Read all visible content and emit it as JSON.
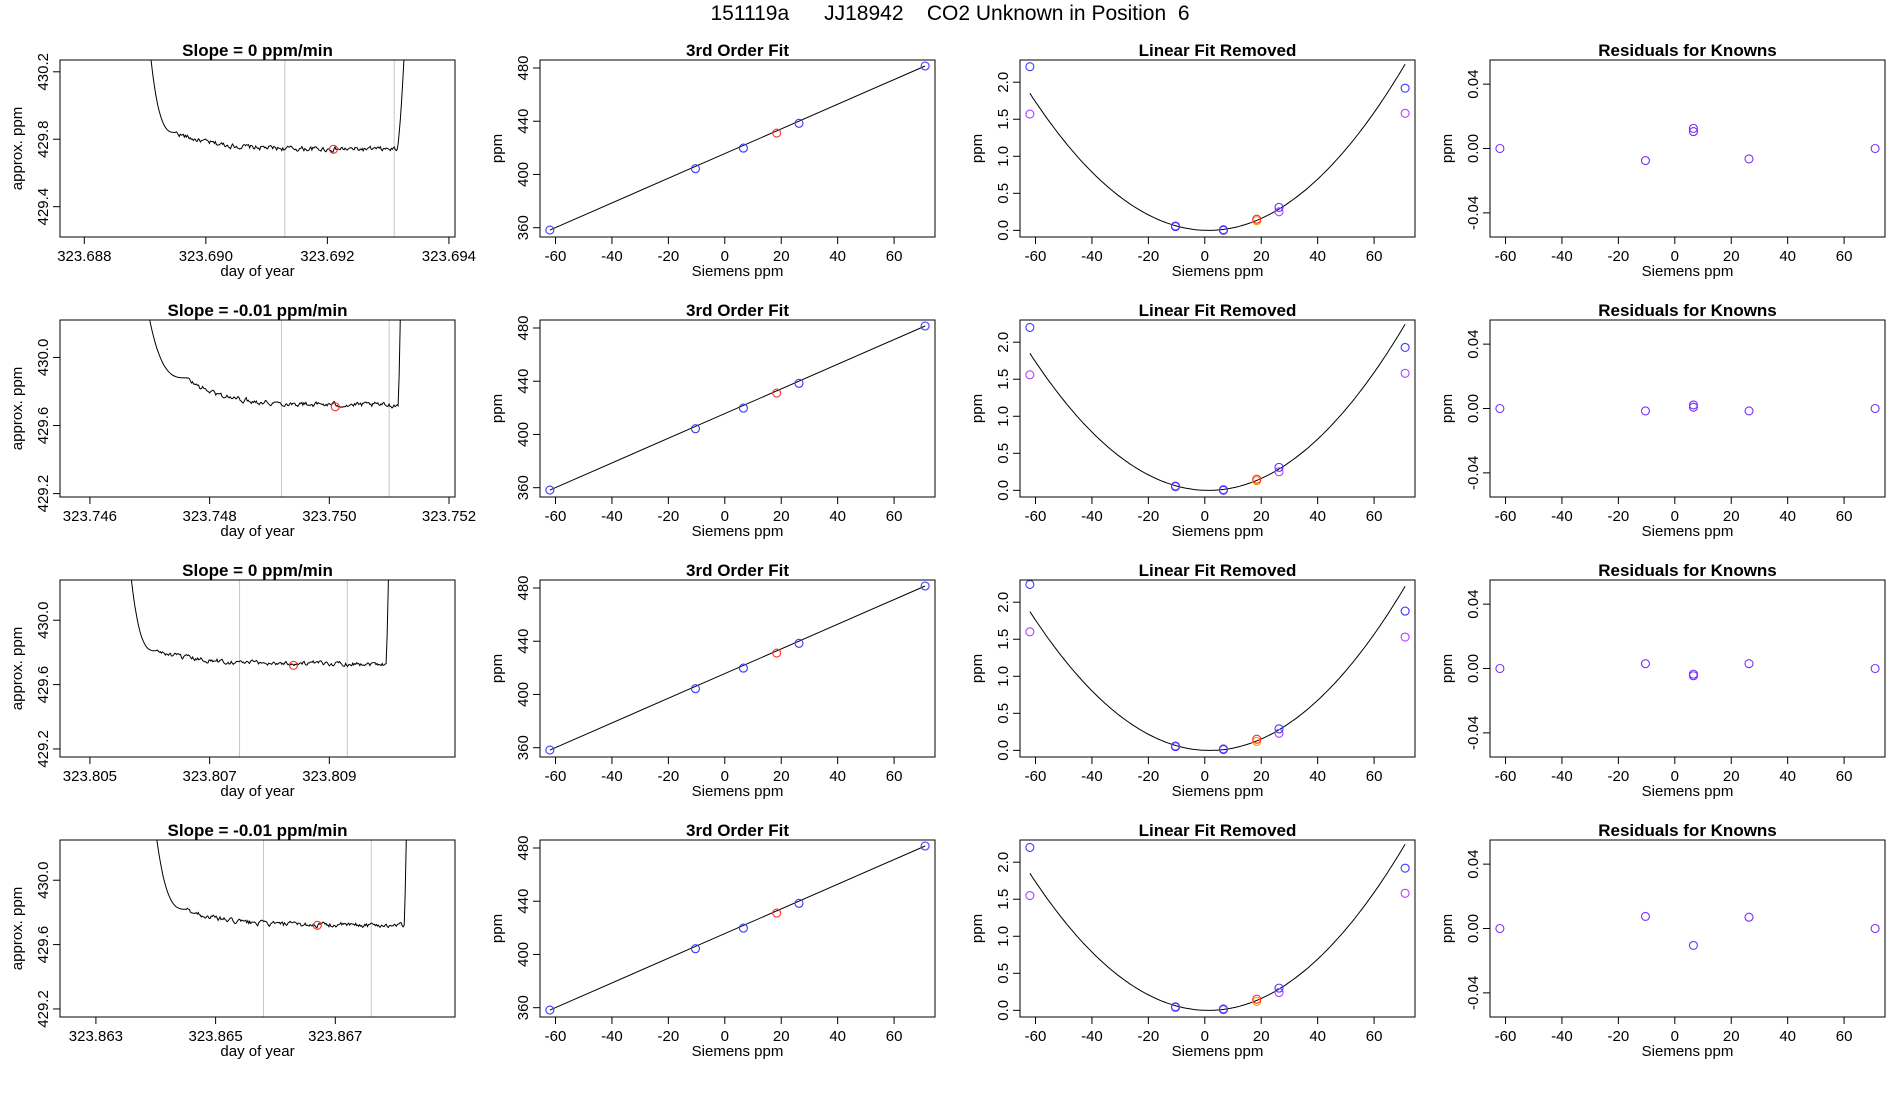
{
  "title": "151119a      JJ18942    CO2 Unknown in Position  6",
  "colors": {
    "blue": "#3b3bff",
    "violet": "#b040ff",
    "red": "#ff2a2a",
    "orange": "#ff9900",
    "purple": "#7a2cff",
    "line": "#000000",
    "guide": "#c8c8c8"
  },
  "chart_data": [
    {
      "type": "line",
      "row": 1,
      "title": "Slope =  0  ppm/min",
      "xlabel": "day of year",
      "ylabel": "approx. ppm",
      "xlim": [
        323.6876,
        323.6941
      ],
      "ylim": [
        429.22,
        430.27
      ],
      "xticks": [
        "323.688",
        "323.690",
        "323.692",
        "323.694"
      ],
      "xtickvals": [
        323.688,
        323.69,
        323.692,
        323.694
      ],
      "yticks": [
        "429.4",
        "429.8",
        "430.2"
      ],
      "ytickvals": [
        429.4,
        429.8,
        430.2
      ],
      "trace": {
        "t_start": 323.689,
        "t_end": 323.6933,
        "t_flat": 323.6895,
        "t_rise": 323.69315,
        "level": 429.74,
        "decay_amp": 0.1,
        "top": 430.27
      },
      "guides": [
        323.6913,
        323.6931
      ],
      "mean_point": {
        "x": 323.6921,
        "y": 429.74
      }
    },
    {
      "type": "line",
      "row": 2,
      "title": "Slope =  -0.01  ppm/min",
      "xlabel": "day of year",
      "ylabel": "approx. ppm",
      "xlim": [
        323.7455,
        323.7521
      ],
      "ylim": [
        429.18,
        430.22
      ],
      "xticks": [
        "323.746",
        "323.748",
        "323.750",
        "323.752"
      ],
      "xtickvals": [
        323.746,
        323.748,
        323.75,
        323.752
      ],
      "yticks": [
        "429.2",
        "429.6",
        "430.0"
      ],
      "ytickvals": [
        429.2,
        429.6,
        430.0
      ],
      "trace": {
        "t_start": 323.7468,
        "t_end": 323.7512,
        "t_flat": 323.7476,
        "t_rise": 323.75115,
        "level": 429.72,
        "decay_amp": 0.16,
        "top": 430.22
      },
      "guides": [
        323.7492,
        323.751
      ],
      "mean_point": {
        "x": 323.7501,
        "y": 429.71
      }
    },
    {
      "type": "line",
      "row": 3,
      "title": "Slope =  0  ppm/min",
      "xlabel": "day of year",
      "ylabel": "approx. ppm",
      "xlim": [
        323.8045,
        323.8111
      ],
      "ylim": [
        429.15,
        430.25
      ],
      "xticks": [
        "323.805",
        "323.807",
        "323.809"
      ],
      "xtickvals": [
        323.805,
        323.807,
        323.809
      ],
      "yticks": [
        "429.2",
        "429.6",
        "430.0"
      ],
      "ytickvals": [
        429.2,
        429.6,
        430.0
      ],
      "trace": {
        "t_start": 323.8056,
        "t_end": 323.81,
        "t_flat": 323.8061,
        "t_rise": 323.80995,
        "level": 429.73,
        "decay_amp": 0.08,
        "top": 430.25
      },
      "guides": [
        323.8075,
        323.8093
      ],
      "mean_point": {
        "x": 323.8084,
        "y": 429.72
      }
    },
    {
      "type": "line",
      "row": 4,
      "title": "Slope =  -0.01  ppm/min",
      "xlabel": "day of year",
      "ylabel": "approx. ppm",
      "xlim": [
        323.8624,
        323.869
      ],
      "ylim": [
        429.15,
        430.25
      ],
      "xticks": [
        "323.863",
        "323.865",
        "323.867"
      ],
      "xtickvals": [
        323.863,
        323.865,
        323.867
      ],
      "yticks": [
        "429.2",
        "429.6",
        "430.0"
      ],
      "ytickvals": [
        429.2,
        429.6,
        430.0
      ],
      "trace": {
        "t_start": 323.8639,
        "t_end": 323.8682,
        "t_flat": 323.8645,
        "t_rise": 323.86815,
        "level": 429.72,
        "decay_amp": 0.1,
        "top": 430.25
      },
      "guides": [
        323.8658,
        323.8676
      ],
      "mean_point": {
        "x": 323.8667,
        "y": 429.72
      }
    },
    {
      "type": "scatter",
      "row": 1,
      "title": "3rd Order Fit",
      "xlabel": "Siemens ppm",
      "ylabel": "ppm",
      "xlim": [
        -65.5,
        74.5
      ],
      "ylim": [
        353,
        486
      ],
      "xticks": [
        "-60",
        "-40",
        "-20",
        "0",
        "20",
        "40",
        "60"
      ],
      "xtickvals": [
        -60,
        -40,
        -20,
        0,
        20,
        40,
        60
      ],
      "yticks": [
        "360",
        "400",
        "440",
        "480"
      ],
      "ytickvals": [
        360,
        400,
        440,
        480
      ],
      "line": [
        [
          -62,
          358.2
        ],
        [
          71,
          481.5
        ]
      ],
      "known": [
        [
          -62,
          358.2
        ],
        [
          -10.4,
          404.3
        ],
        [
          6.6,
          419.8
        ],
        [
          26.3,
          438.4
        ],
        [
          71,
          481.5
        ]
      ],
      "unknown": [
        [
          18.4,
          431.1
        ]
      ]
    },
    {
      "type": "scatter",
      "row": 2,
      "title": "3rd Order Fit",
      "xlabel": "Siemens ppm",
      "ylabel": "ppm",
      "xlim": [
        -65.5,
        74.5
      ],
      "ylim": [
        353,
        486
      ],
      "xticks": [
        "-60",
        "-40",
        "-20",
        "0",
        "20",
        "40",
        "60"
      ],
      "xtickvals": [
        -60,
        -40,
        -20,
        0,
        20,
        40,
        60
      ],
      "yticks": [
        "360",
        "400",
        "440",
        "480"
      ],
      "ytickvals": [
        360,
        400,
        440,
        480
      ],
      "line": [
        [
          -62,
          358.2
        ],
        [
          71,
          481.5
        ]
      ],
      "known": [
        [
          -62,
          358.2
        ],
        [
          -10.4,
          404.3
        ],
        [
          6.6,
          419.8
        ],
        [
          26.3,
          438.4
        ],
        [
          71,
          481.5
        ]
      ],
      "unknown": [
        [
          18.4,
          431.1
        ]
      ]
    },
    {
      "type": "scatter",
      "row": 3,
      "title": "3rd Order Fit",
      "xlabel": "Siemens ppm",
      "ylabel": "ppm",
      "xlim": [
        -65.5,
        74.5
      ],
      "ylim": [
        353,
        486
      ],
      "xticks": [
        "-60",
        "-40",
        "-20",
        "0",
        "20",
        "40",
        "60"
      ],
      "xtickvals": [
        -60,
        -40,
        -20,
        0,
        20,
        40,
        60
      ],
      "yticks": [
        "360",
        "400",
        "440",
        "480"
      ],
      "ytickvals": [
        360,
        400,
        440,
        480
      ],
      "line": [
        [
          -62,
          358.2
        ],
        [
          71,
          481.5
        ]
      ],
      "known": [
        [
          -62,
          358.2
        ],
        [
          -10.4,
          404.3
        ],
        [
          6.6,
          419.8
        ],
        [
          26.3,
          438.4
        ],
        [
          71,
          481.5
        ]
      ],
      "unknown": [
        [
          18.4,
          431.1
        ]
      ]
    },
    {
      "type": "scatter",
      "row": 4,
      "title": "3rd Order Fit",
      "xlabel": "Siemens ppm",
      "ylabel": "ppm",
      "xlim": [
        -65.5,
        74.5
      ],
      "ylim": [
        353,
        486
      ],
      "xticks": [
        "-60",
        "-40",
        "-20",
        "0",
        "20",
        "40",
        "60"
      ],
      "xtickvals": [
        -60,
        -40,
        -20,
        0,
        20,
        40,
        60
      ],
      "yticks": [
        "360",
        "400",
        "440",
        "480"
      ],
      "ytickvals": [
        360,
        400,
        440,
        480
      ],
      "line": [
        [
          -62,
          358.2
        ],
        [
          71,
          481.5
        ]
      ],
      "known": [
        [
          -62,
          358.2
        ],
        [
          -10.4,
          404.3
        ],
        [
          6.6,
          419.8
        ],
        [
          26.3,
          438.4
        ],
        [
          71,
          481.5
        ]
      ],
      "unknown": [
        [
          18.4,
          431.1
        ]
      ]
    },
    {
      "type": "scatter",
      "row": 1,
      "title": "Linear Fit Removed",
      "xlabel": "Siemens ppm",
      "ylabel": "ppm",
      "xlim": [
        -65.5,
        74.5
      ],
      "ylim": [
        -0.09,
        2.3
      ],
      "xticks": [
        "-60",
        "-40",
        "-20",
        "0",
        "20",
        "40",
        "60"
      ],
      "xtickvals": [
        -60,
        -40,
        -20,
        0,
        20,
        40,
        60
      ],
      "yticks": [
        "0.0",
        "0.5",
        "1.0",
        "1.5",
        "2.0"
      ],
      "ytickvals": [
        0,
        0.5,
        1.0,
        1.5,
        2.0
      ],
      "curve": {
        "coef": [
          0.0,
          -0.0012,
          0.000462,
          0.0
        ],
        "xrange": [
          -62,
          71
        ]
      },
      "known_blue": [
        [
          -62,
          2.21
        ],
        [
          -10.4,
          0.05
        ],
        [
          6.6,
          0.0
        ],
        [
          26.3,
          0.31
        ],
        [
          71,
          1.92
        ]
      ],
      "known_violet": [
        [
          -62,
          1.57
        ],
        [
          -10.4,
          0.06
        ],
        [
          6.6,
          0.01
        ],
        [
          26.3,
          0.25
        ],
        [
          71,
          1.58
        ]
      ],
      "unknown_orange": [
        [
          18.4,
          0.13
        ]
      ],
      "unknown_red": [
        [
          18.4,
          0.15
        ]
      ]
    },
    {
      "type": "scatter",
      "row": 2,
      "title": "Linear Fit Removed",
      "xlabel": "Siemens ppm",
      "ylabel": "ppm",
      "xlim": [
        -65.5,
        74.5
      ],
      "ylim": [
        -0.09,
        2.3
      ],
      "xticks": [
        "-60",
        "-40",
        "-20",
        "0",
        "20",
        "40",
        "60"
      ],
      "xtickvals": [
        -60,
        -40,
        -20,
        0,
        20,
        40,
        60
      ],
      "yticks": [
        "0.0",
        "0.5",
        "1.0",
        "1.5",
        "2.0"
      ],
      "ytickvals": [
        0,
        0.5,
        1.0,
        1.5,
        2.0
      ],
      "curve": {
        "coef": [
          0.0,
          -0.0012,
          0.000462,
          0.0
        ],
        "xrange": [
          -62,
          71
        ]
      },
      "known_blue": [
        [
          -62,
          2.2
        ],
        [
          -10.4,
          0.05
        ],
        [
          6.6,
          0.0
        ],
        [
          26.3,
          0.31
        ],
        [
          71,
          1.93
        ]
      ],
      "known_violet": [
        [
          -62,
          1.56
        ],
        [
          -10.4,
          0.06
        ],
        [
          6.6,
          0.01
        ],
        [
          26.3,
          0.25
        ],
        [
          71,
          1.58
        ]
      ],
      "unknown_orange": [
        [
          18.4,
          0.13
        ]
      ],
      "unknown_red": [
        [
          18.4,
          0.15
        ]
      ]
    },
    {
      "type": "scatter",
      "row": 3,
      "title": "Linear Fit Removed",
      "xlabel": "Siemens ppm",
      "ylabel": "ppm",
      "xlim": [
        -65.5,
        74.5
      ],
      "ylim": [
        -0.09,
        2.3
      ],
      "xticks": [
        "-60",
        "-40",
        "-20",
        "0",
        "20",
        "40",
        "60"
      ],
      "xtickvals": [
        -60,
        -40,
        -20,
        0,
        20,
        40,
        60
      ],
      "yticks": [
        "0.0",
        "0.5",
        "1.0",
        "1.5",
        "2.0"
      ],
      "ytickvals": [
        0,
        0.5,
        1.0,
        1.5,
        2.0
      ],
      "curve": {
        "coef": [
          0.0,
          -0.0016,
          0.000462,
          0.0
        ],
        "xrange": [
          -62,
          71
        ]
      },
      "known_blue": [
        [
          -62,
          2.24
        ],
        [
          -10.4,
          0.05
        ],
        [
          6.6,
          0.01
        ],
        [
          26.3,
          0.29
        ],
        [
          71,
          1.88
        ]
      ],
      "known_violet": [
        [
          -62,
          1.6
        ],
        [
          -10.4,
          0.06
        ],
        [
          6.6,
          0.02
        ],
        [
          26.3,
          0.23
        ],
        [
          71,
          1.53
        ]
      ],
      "unknown_orange": [
        [
          18.4,
          0.12
        ]
      ],
      "unknown_red": [
        [
          18.4,
          0.15
        ]
      ]
    },
    {
      "type": "scatter",
      "row": 4,
      "title": "Linear Fit Removed",
      "xlabel": "Siemens ppm",
      "ylabel": "ppm",
      "xlim": [
        -65.5,
        74.5
      ],
      "ylim": [
        -0.09,
        2.3
      ],
      "xticks": [
        "-60",
        "-40",
        "-20",
        "0",
        "20",
        "40",
        "60"
      ],
      "xtickvals": [
        -60,
        -40,
        -20,
        0,
        20,
        40,
        60
      ],
      "yticks": [
        "0.0",
        "0.5",
        "1.0",
        "1.5",
        "2.0"
      ],
      "ytickvals": [
        0,
        0.5,
        1.0,
        1.5,
        2.0
      ],
      "curve": {
        "coef": [
          0.0,
          -0.0012,
          0.000462,
          0.0
        ],
        "xrange": [
          -62,
          71
        ]
      },
      "known_blue": [
        [
          -62,
          2.2
        ],
        [
          -10.4,
          0.04
        ],
        [
          6.6,
          0.01
        ],
        [
          26.3,
          0.3
        ],
        [
          71,
          1.92
        ]
      ],
      "known_violet": [
        [
          -62,
          1.55
        ],
        [
          -10.4,
          0.05
        ],
        [
          6.6,
          0.02
        ],
        [
          26.3,
          0.24
        ],
        [
          71,
          1.58
        ]
      ],
      "unknown_orange": [
        [
          18.4,
          0.12
        ]
      ],
      "unknown_red": [
        [
          18.4,
          0.15
        ]
      ]
    },
    {
      "type": "scatter",
      "row": 1,
      "title": "Residuals for Knowns",
      "xlabel": "Siemens ppm",
      "ylabel": "ppm",
      "xlim": [
        -65.5,
        74.5
      ],
      "ylim": [
        -0.055,
        0.055
      ],
      "xticks": [
        "-60",
        "-40",
        "-20",
        "0",
        "20",
        "40",
        "60"
      ],
      "xtickvals": [
        -60,
        -40,
        -20,
        0,
        20,
        40,
        60
      ],
      "yticks": [
        "-0.04",
        "0.00",
        "0.04"
      ],
      "ytickvals": [
        -0.04,
        0.0,
        0.04
      ],
      "points": [
        [
          -62,
          0.0
        ],
        [
          -10.4,
          -0.0075
        ],
        [
          6.6,
          0.0125
        ],
        [
          6.6,
          0.0105
        ],
        [
          26.3,
          -0.0065
        ],
        [
          71,
          0.0
        ]
      ]
    },
    {
      "type": "scatter",
      "row": 2,
      "title": "Residuals for Knowns",
      "xlabel": "Siemens ppm",
      "ylabel": "ppm",
      "xlim": [
        -65.5,
        74.5
      ],
      "ylim": [
        -0.055,
        0.055
      ],
      "xticks": [
        "-60",
        "-40",
        "-20",
        "0",
        "20",
        "40",
        "60"
      ],
      "xtickvals": [
        -60,
        -40,
        -20,
        0,
        20,
        40,
        60
      ],
      "yticks": [
        "-0.04",
        "0.00",
        "0.04"
      ],
      "ytickvals": [
        -0.04,
        0.0,
        0.04
      ],
      "points": [
        [
          -62,
          0.0
        ],
        [
          -10.4,
          -0.0015
        ],
        [
          6.6,
          0.0022
        ],
        [
          6.6,
          0.0008
        ],
        [
          26.3,
          -0.0015
        ],
        [
          71,
          0.0
        ]
      ]
    },
    {
      "type": "scatter",
      "row": 3,
      "title": "Residuals for Knowns",
      "xlabel": "Siemens ppm",
      "ylabel": "ppm",
      "xlim": [
        -65.5,
        74.5
      ],
      "ylim": [
        -0.055,
        0.055
      ],
      "xticks": [
        "-60",
        "-40",
        "-20",
        "0",
        "20",
        "40",
        "60"
      ],
      "xtickvals": [
        -60,
        -40,
        -20,
        0,
        20,
        40,
        60
      ],
      "yticks": [
        "-0.04",
        "0.00",
        "0.04"
      ],
      "ytickvals": [
        -0.04,
        0.0,
        0.04
      ],
      "points": [
        [
          -62,
          0.0
        ],
        [
          -10.4,
          0.003
        ],
        [
          6.6,
          -0.0045
        ],
        [
          6.6,
          -0.0035
        ],
        [
          26.3,
          0.003
        ],
        [
          71,
          0.0
        ]
      ]
    },
    {
      "type": "scatter",
      "row": 4,
      "title": "Residuals for Knowns",
      "xlabel": "Siemens ppm",
      "ylabel": "ppm",
      "xlim": [
        -65.5,
        74.5
      ],
      "ylim": [
        -0.055,
        0.055
      ],
      "xticks": [
        "-60",
        "-40",
        "-20",
        "0",
        "20",
        "40",
        "60"
      ],
      "xtickvals": [
        -60,
        -40,
        -20,
        0,
        20,
        40,
        60
      ],
      "yticks": [
        "-0.04",
        "0.00",
        "0.04"
      ],
      "ytickvals": [
        -0.04,
        0.0,
        0.04
      ],
      "points": [
        [
          -62,
          0.0
        ],
        [
          -10.4,
          0.0075
        ],
        [
          6.6,
          -0.0105
        ],
        [
          26.3,
          0.007
        ],
        [
          71,
          0.0
        ]
      ]
    }
  ]
}
